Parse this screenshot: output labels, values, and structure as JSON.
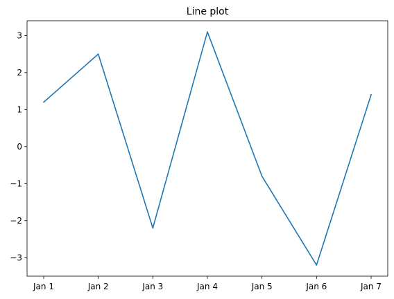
{
  "chart_data": {
    "type": "line",
    "title": "Line plot",
    "xlabel": "",
    "ylabel": "",
    "categories": [
      "Jan 1",
      "Jan 2",
      "Jan 3",
      "Jan 4",
      "Jan 5",
      "Jan 6",
      "Jan 7"
    ],
    "values": [
      1.2,
      2.5,
      -2.2,
      3.1,
      -0.8,
      -3.2,
      1.4
    ],
    "ylim": [
      -3.5,
      3.4
    ],
    "yticks": [
      3,
      2,
      1,
      0,
      -1,
      -2,
      -3
    ],
    "ytick_labels": [
      "3",
      "2",
      "1",
      "0",
      "−1",
      "−2",
      "−3"
    ],
    "grid": false,
    "line_color": "#1f77b4"
  }
}
